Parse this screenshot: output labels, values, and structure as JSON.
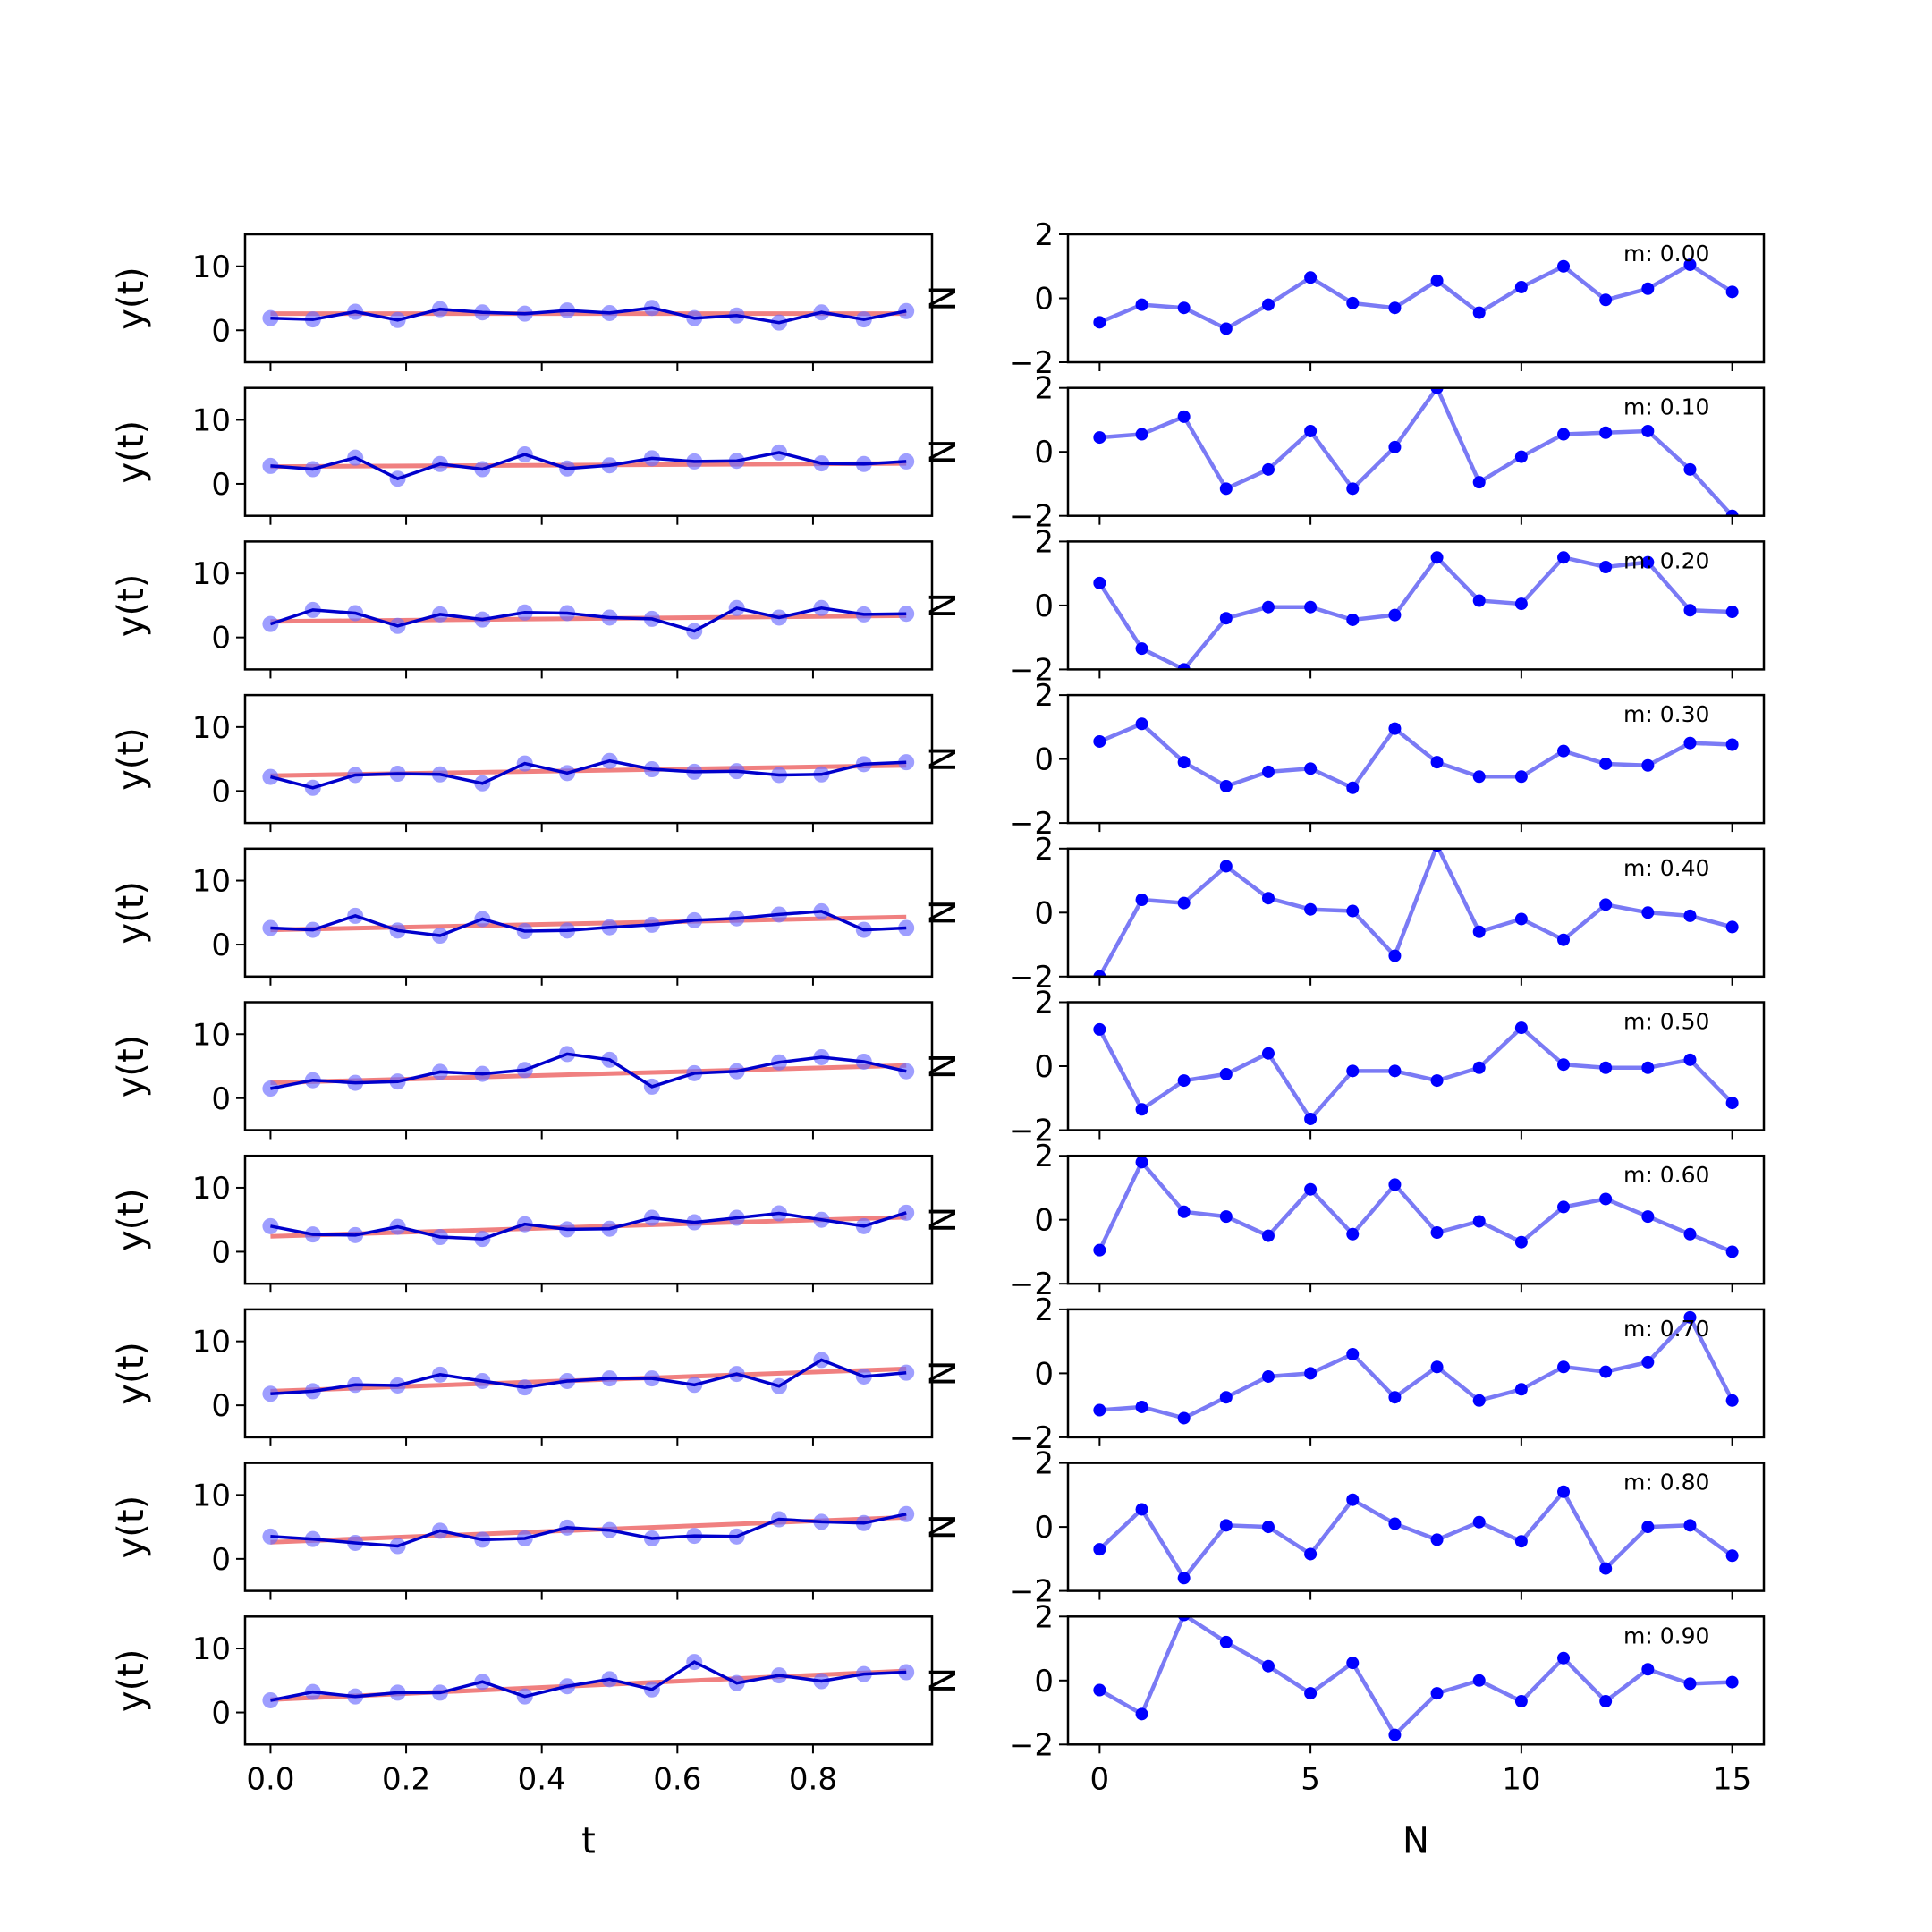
{
  "chart_data": [
    {
      "type": "grid-of-line-charts",
      "columns": [
        {
          "xlabel": "t",
          "ylabel": "y(t)",
          "xlim": [
            -0.0375,
            0.9755
          ],
          "ylim": [
            -5,
            15
          ],
          "xticks": [
            0.0,
            0.2,
            0.4,
            0.6,
            0.8
          ],
          "xtick_labels": [
            "0.0",
            "0.2",
            "0.4",
            "0.6",
            "0.8"
          ],
          "yticks": [
            0,
            10
          ],
          "ytick_labels": [
            "0",
            "10"
          ],
          "t": [
            0,
            0.0625,
            0.125,
            0.1875,
            0.25,
            0.3125,
            0.375,
            0.4375,
            0.5,
            0.5625,
            0.625,
            0.6875,
            0.75,
            0.8125,
            0.875,
            0.9375
          ],
          "series_colors": {
            "data": "#0000cc",
            "points": "#6a6aff",
            "fit": "#f08080"
          }
        },
        {
          "xlabel": "N",
          "ylabel": "N",
          "xlim": [
            -0.75,
            15.75
          ],
          "ylim": [
            -2,
            2
          ],
          "xticks": [
            0,
            5,
            10,
            15
          ],
          "xtick_labels": [
            "0",
            "5",
            "10",
            "15"
          ],
          "yticks": [
            -2,
            0,
            2
          ],
          "ytick_labels": [
            "−2",
            "0",
            "2"
          ],
          "x": [
            0,
            1,
            2,
            3,
            4,
            5,
            6,
            7,
            8,
            9,
            10,
            11,
            12,
            13,
            14,
            15
          ],
          "series_colors": {
            "line": "#7a7af5",
            "points": "#0000ff"
          }
        }
      ],
      "rows": [
        {
          "label": "m: 0.00",
          "y": [
            1.9,
            1.7,
            2.9,
            1.6,
            3.3,
            2.8,
            2.6,
            3.1,
            2.7,
            3.5,
            1.9,
            2.3,
            1.2,
            2.8,
            1.7,
            3.0
          ],
          "fit": [
            2.6,
            2.6
          ],
          "noise": [
            -0.75,
            -0.2,
            -0.3,
            -0.95,
            -0.2,
            0.65,
            -0.15,
            -0.3,
            0.55,
            -0.45,
            0.35,
            1.0,
            -0.05,
            0.3,
            1.05,
            0.2
          ]
        },
        {
          "label": "m: 0.10",
          "y": [
            2.8,
            2.3,
            4.1,
            0.8,
            3.1,
            2.3,
            4.6,
            2.4,
            2.9,
            4.0,
            3.5,
            3.6,
            4.9,
            3.2,
            3.1,
            3.5
          ],
          "fit": [
            2.7,
            3.2
          ],
          "noise": [
            0.45,
            0.55,
            1.1,
            -1.15,
            -0.55,
            0.65,
            -1.15,
            0.15,
            2.0,
            -0.95,
            -0.15,
            0.55,
            0.6,
            0.65,
            -0.55,
            -2.0
          ]
        },
        {
          "label": "m: 0.20",
          "y": [
            2.1,
            4.3,
            3.8,
            1.8,
            3.6,
            2.8,
            3.9,
            3.8,
            3.1,
            2.9,
            1.0,
            4.6,
            3.1,
            4.6,
            3.6,
            3.7
          ],
          "fit": [
            2.5,
            3.4
          ],
          "noise": [
            0.7,
            -1.35,
            -2.0,
            -0.4,
            -0.05,
            -0.05,
            -0.45,
            -0.3,
            1.5,
            0.15,
            0.05,
            1.5,
            1.2,
            1.35,
            -0.15,
            -0.2
          ]
        },
        {
          "label": "m: 0.30",
          "y": [
            2.2,
            0.5,
            2.5,
            2.7,
            2.6,
            1.2,
            4.3,
            2.8,
            4.7,
            3.4,
            3.0,
            3.1,
            2.5,
            2.6,
            4.2,
            4.5
          ],
          "fit": [
            2.4,
            4.0
          ],
          "noise": [
            0.55,
            1.1,
            -0.1,
            -0.85,
            -0.4,
            -0.3,
            -0.9,
            0.95,
            -0.1,
            -0.55,
            -0.55,
            0.25,
            -0.15,
            -0.2,
            0.5,
            0.45
          ]
        },
        {
          "label": "m: 0.40",
          "y": [
            2.6,
            2.3,
            4.5,
            2.2,
            1.4,
            4.0,
            2.1,
            2.2,
            2.7,
            3.1,
            3.8,
            4.1,
            4.7,
            5.2,
            2.3,
            2.6
          ],
          "fit": [
            2.3,
            4.3
          ],
          "noise": [
            -2.0,
            0.4,
            0.3,
            1.45,
            0.45,
            0.1,
            0.05,
            -1.35,
            2.1,
            -0.6,
            -0.2,
            -0.85,
            0.25,
            0.0,
            -0.1,
            -0.45
          ]
        },
        {
          "label": "m: 0.50",
          "y": [
            1.5,
            2.8,
            2.4,
            2.6,
            4.1,
            3.8,
            4.4,
            6.9,
            6.0,
            1.8,
            3.9,
            4.2,
            5.6,
            6.4,
            5.7,
            4.2
          ],
          "fit": [
            2.4,
            5.1
          ],
          "noise": [
            1.15,
            -1.35,
            -0.45,
            -0.25,
            0.4,
            -1.65,
            -0.15,
            -0.15,
            -0.45,
            -0.05,
            1.2,
            0.05,
            -0.05,
            -0.05,
            0.2,
            -1.15
          ]
        },
        {
          "label": "m: 0.60",
          "y": [
            4.0,
            2.7,
            2.6,
            3.9,
            2.3,
            2.0,
            4.3,
            3.5,
            3.6,
            5.3,
            4.6,
            5.3,
            6.0,
            5.0,
            4.0,
            6.1
          ],
          "fit": [
            2.4,
            5.4
          ],
          "noise": [
            -0.95,
            1.8,
            0.25,
            0.1,
            -0.5,
            0.95,
            -0.45,
            1.1,
            -0.4,
            -0.05,
            -0.7,
            0.4,
            0.65,
            0.1,
            -0.45,
            -1.0
          ]
        },
        {
          "label": "m: 0.70",
          "y": [
            1.8,
            2.2,
            3.2,
            3.1,
            4.8,
            3.8,
            2.8,
            3.8,
            4.2,
            4.2,
            3.2,
            4.9,
            3.0,
            7.1,
            4.5,
            5.1
          ],
          "fit": [
            2.2,
            5.7
          ],
          "noise": [
            -1.15,
            -1.05,
            -1.4,
            -0.75,
            -0.1,
            -0.0,
            0.6,
            -0.75,
            0.2,
            -0.85,
            -0.5,
            0.2,
            0.05,
            0.35,
            1.75,
            -0.85
          ]
        },
        {
          "label": "m: 0.80",
          "y": [
            3.5,
            3.1,
            2.5,
            2.0,
            4.4,
            3.0,
            3.2,
            4.9,
            4.5,
            3.2,
            3.6,
            3.5,
            6.2,
            5.8,
            5.6,
            7.0
          ],
          "fit": [
            2.6,
            6.5
          ],
          "noise": [
            -0.7,
            0.55,
            -1.6,
            0.05,
            0.0,
            -0.85,
            0.85,
            0.1,
            -0.4,
            0.15,
            -0.45,
            1.1,
            -1.3,
            -0.0,
            0.05,
            -0.9
          ]
        },
        {
          "label": "m: 0.90",
          "y": [
            1.9,
            3.2,
            2.5,
            3.1,
            3.1,
            4.8,
            2.5,
            4.1,
            5.2,
            3.6,
            7.9,
            4.6,
            5.8,
            4.9,
            6.0,
            6.3
          ],
          "fit": [
            2.0,
            6.5
          ],
          "noise": [
            -0.3,
            -1.05,
            2.05,
            1.2,
            0.45,
            -0.4,
            0.55,
            -1.7,
            -0.4,
            -0.0,
            -0.65,
            0.7,
            -0.65,
            0.35,
            -0.1,
            -0.05
          ]
        }
      ]
    }
  ]
}
